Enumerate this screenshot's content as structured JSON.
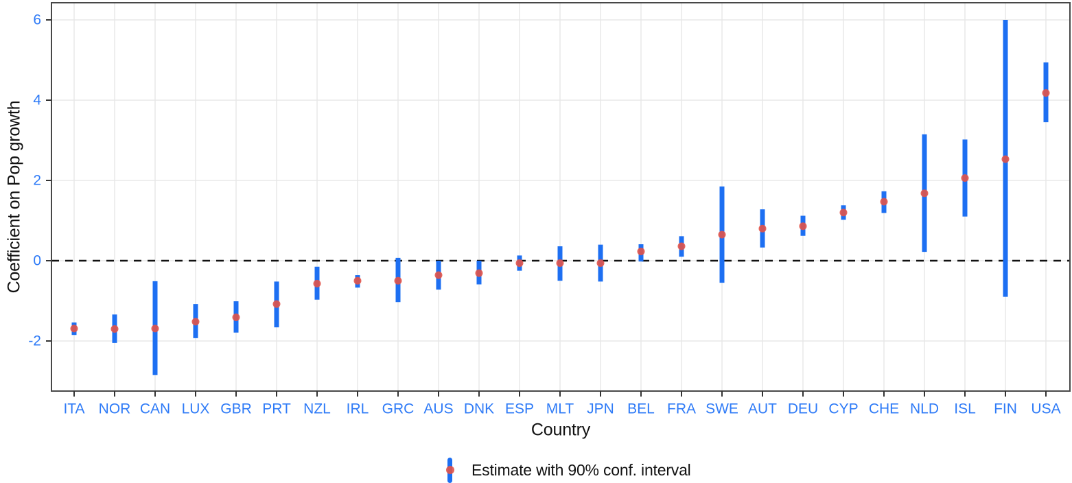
{
  "chart_data": {
    "type": "scatter",
    "subtype": "coefficient-plot-with-error-bars",
    "title": "",
    "xlabel": "Country",
    "ylabel": "Coefficient on Pop growth",
    "categories": [
      "ITA",
      "NOR",
      "CAN",
      "LUX",
      "GBR",
      "PRT",
      "NZL",
      "IRL",
      "GRC",
      "AUS",
      "DNK",
      "ESP",
      "MLT",
      "JPN",
      "BEL",
      "FRA",
      "SWE",
      "AUT",
      "DEU",
      "CYP",
      "CHE",
      "NLD",
      "ISL",
      "FIN",
      "USA"
    ],
    "series": [
      {
        "name": "Estimate with 90% conf. interval",
        "estimates": [
          -1.69,
          -1.7,
          -1.69,
          -1.52,
          -1.41,
          -1.08,
          -0.57,
          -0.5,
          -0.5,
          -0.36,
          -0.31,
          -0.06,
          -0.06,
          -0.06,
          0.23,
          0.36,
          0.65,
          0.8,
          0.86,
          1.2,
          1.47,
          1.68,
          2.06,
          2.53,
          4.18
        ],
        "ci_low": [
          -1.85,
          -2.05,
          -2.85,
          -1.93,
          -1.79,
          -1.66,
          -0.97,
          -0.67,
          -1.03,
          -0.72,
          -0.59,
          -0.25,
          -0.5,
          -0.52,
          -0.02,
          0.1,
          -0.55,
          0.33,
          0.62,
          1.02,
          1.19,
          0.22,
          1.1,
          -0.9,
          3.45
        ],
        "ci_high": [
          -1.54,
          -1.34,
          -0.51,
          -1.08,
          -1.01,
          -0.52,
          -0.15,
          -0.36,
          0.07,
          0.0,
          0.0,
          0.13,
          0.36,
          0.4,
          0.41,
          0.61,
          1.85,
          1.28,
          1.12,
          1.38,
          1.73,
          3.15,
          3.02,
          6.0,
          4.94
        ]
      }
    ],
    "yticks": [
      6,
      4,
      2,
      0,
      -2
    ],
    "ylim": [
      -3.25,
      6.43
    ],
    "zero_line": 0,
    "grid": "major",
    "legend": {
      "position": "bottom",
      "label": "Estimate with 90% conf. interval"
    },
    "colors": {
      "interval": "#1d6ff2",
      "point": "#e25349",
      "axis_tick_labels": "#2f7bf7",
      "axis_titles": "#111111",
      "gridline": "#e8e8e8",
      "panel_border": "#474747",
      "tick_mark": "#333333",
      "zero_line": "#111111",
      "background": "#ffffff"
    }
  }
}
